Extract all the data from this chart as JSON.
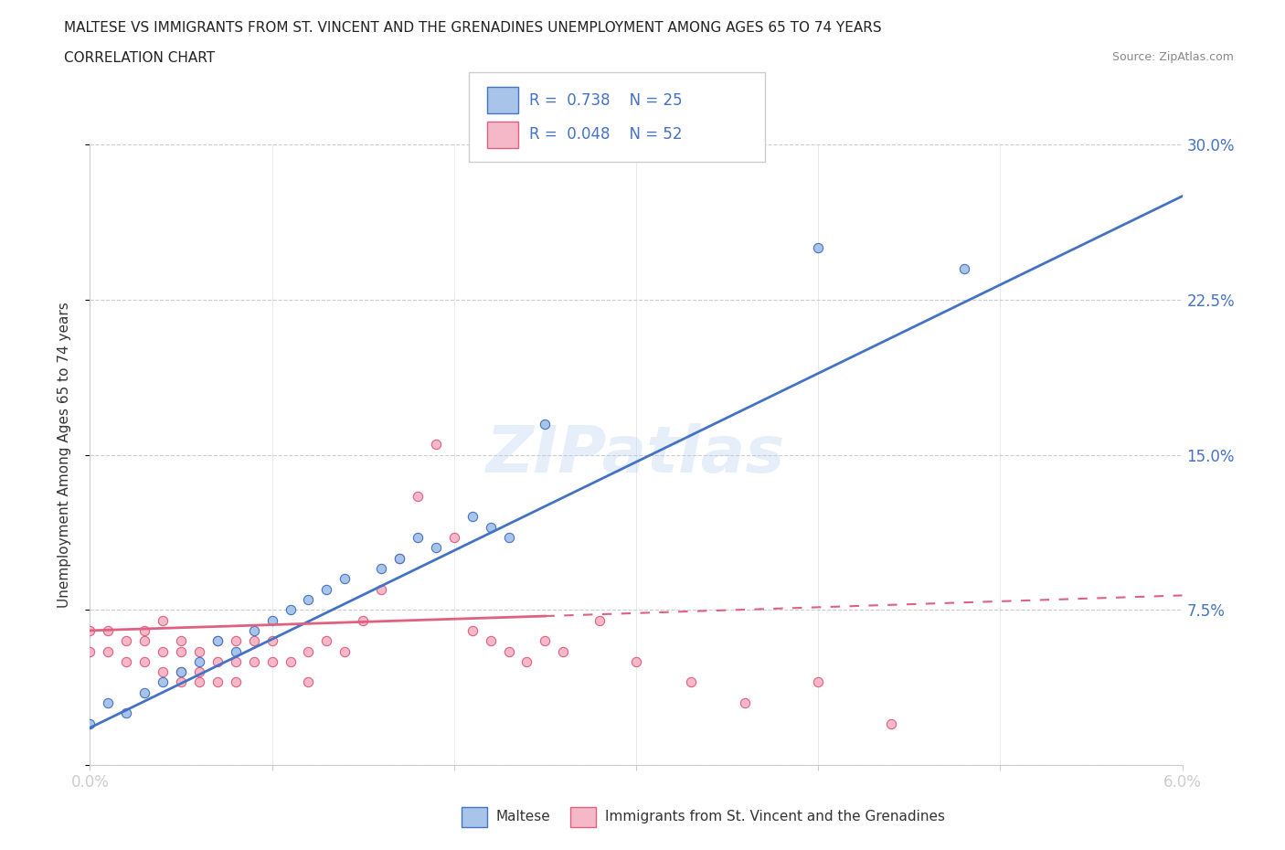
{
  "title_line1": "MALTESE VS IMMIGRANTS FROM ST. VINCENT AND THE GRENADINES UNEMPLOYMENT AMONG AGES 65 TO 74 YEARS",
  "title_line2": "CORRELATION CHART",
  "source_text": "Source: ZipAtlas.com",
  "watermark": "ZIPatlas",
  "legend_r1": "0.738",
  "legend_n1": "25",
  "legend_r2": "0.048",
  "legend_n2": "52",
  "color_maltese": "#a8c4e8",
  "color_svg": "#f4b8c8",
  "color_trend_maltese": "#4472c4",
  "color_trend_svg": "#e06080",
  "color_text_blue": "#4472c4",
  "maltese_x": [
    0.0,
    0.001,
    0.002,
    0.003,
    0.004,
    0.005,
    0.006,
    0.007,
    0.008,
    0.009,
    0.01,
    0.011,
    0.012,
    0.013,
    0.014,
    0.016,
    0.017,
    0.018,
    0.019,
    0.021,
    0.022,
    0.023,
    0.025,
    0.04,
    0.048
  ],
  "maltese_y": [
    0.02,
    0.03,
    0.025,
    0.035,
    0.04,
    0.045,
    0.05,
    0.06,
    0.055,
    0.065,
    0.07,
    0.075,
    0.08,
    0.085,
    0.09,
    0.095,
    0.1,
    0.11,
    0.105,
    0.12,
    0.115,
    0.11,
    0.165,
    0.25,
    0.24
  ],
  "svg_x": [
    0.0,
    0.0,
    0.001,
    0.001,
    0.002,
    0.002,
    0.003,
    0.003,
    0.003,
    0.004,
    0.004,
    0.004,
    0.005,
    0.005,
    0.005,
    0.005,
    0.006,
    0.006,
    0.006,
    0.007,
    0.007,
    0.007,
    0.008,
    0.008,
    0.008,
    0.009,
    0.009,
    0.01,
    0.01,
    0.011,
    0.012,
    0.012,
    0.013,
    0.014,
    0.015,
    0.016,
    0.017,
    0.018,
    0.019,
    0.02,
    0.021,
    0.022,
    0.023,
    0.024,
    0.025,
    0.026,
    0.028,
    0.03,
    0.033,
    0.036,
    0.04,
    0.044
  ],
  "svg_y": [
    0.065,
    0.055,
    0.065,
    0.055,
    0.06,
    0.05,
    0.065,
    0.06,
    0.05,
    0.07,
    0.055,
    0.045,
    0.06,
    0.055,
    0.045,
    0.04,
    0.055,
    0.045,
    0.04,
    0.06,
    0.05,
    0.04,
    0.06,
    0.05,
    0.04,
    0.06,
    0.05,
    0.06,
    0.05,
    0.05,
    0.055,
    0.04,
    0.06,
    0.055,
    0.07,
    0.085,
    0.1,
    0.13,
    0.155,
    0.11,
    0.065,
    0.06,
    0.055,
    0.05,
    0.06,
    0.055,
    0.07,
    0.05,
    0.04,
    0.03,
    0.04,
    0.02
  ],
  "xmin": 0.0,
  "xmax": 0.06,
  "ymin": 0.0,
  "ymax": 0.3,
  "trend_maltese_x0": 0.0,
  "trend_maltese_y0": 0.018,
  "trend_maltese_x1": 0.06,
  "trend_maltese_y1": 0.275,
  "trend_svg_x0": 0.0,
  "trend_svg_y0": 0.065,
  "trend_svg_x1": 0.06,
  "trend_svg_y1": 0.082
}
